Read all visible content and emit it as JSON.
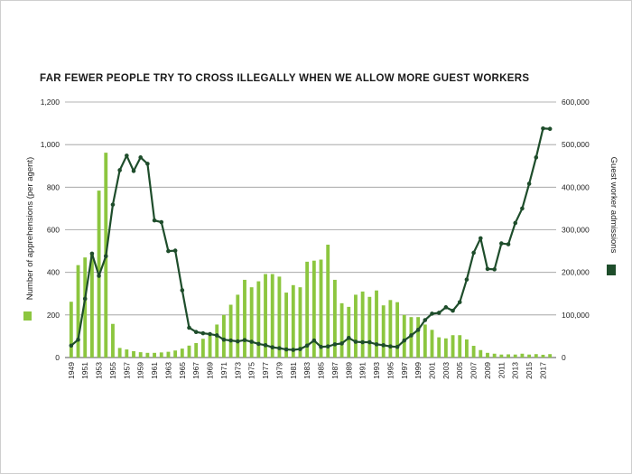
{
  "chart_data": {
    "type": "bar+line",
    "title": "FAR FEWER PEOPLE TRY TO CROSS ILLEGALLY WHEN WE ALLOW MORE GUEST WORKERS",
    "ylabel_left": "Number of apprehensions (per agent)",
    "ylabel_right": "Guest worker admissions",
    "ylim_left": [
      0,
      1200
    ],
    "ylim_right": [
      0,
      600000
    ],
    "left_ticks": [
      "0",
      "200",
      "400",
      "600",
      "800",
      "1,000",
      "1,200"
    ],
    "right_ticks": [
      "0",
      "100,000",
      "200,000",
      "300,000",
      "400,000",
      "500,000",
      "600,000"
    ],
    "grid": true,
    "x_start": 1949,
    "x_end": 2018,
    "x_tick_labels": [
      "1949",
      "1951",
      "1953",
      "1955",
      "1957",
      "1959",
      "1961",
      "1963",
      "1965",
      "1967",
      "1969",
      "1971",
      "1973",
      "1975",
      "1977",
      "1979",
      "1981",
      "1983",
      "1985",
      "1987",
      "1989",
      "1991",
      "1993",
      "1995",
      "1997",
      "1999",
      "2001",
      "2003",
      "2005",
      "2007",
      "2009",
      "2011",
      "2013",
      "2015",
      "2017"
    ],
    "series": [
      {
        "name": "Apprehensions per agent",
        "kind": "bar",
        "axis": "left",
        "color": "#8cc63f",
        "values": [
          262,
          434,
          470,
          487,
          784,
          962,
          158,
          45,
          38,
          30,
          25,
          22,
          22,
          24,
          27,
          33,
          42,
          56,
          68,
          88,
          115,
          155,
          200,
          248,
          295,
          365,
          330,
          358,
          392,
          392,
          380,
          305,
          340,
          330,
          450,
          455,
          460,
          530,
          365,
          255,
          238,
          295,
          310,
          285,
          315,
          245,
          270,
          260,
          200,
          190,
          190,
          155,
          130,
          95,
          90,
          105,
          105,
          85,
          55,
          35,
          22,
          18,
          14,
          15,
          14,
          18,
          14,
          16,
          13,
          16
        ]
      },
      {
        "name": "Guest worker admissions",
        "kind": "line",
        "axis": "right",
        "color": "#1e4d2b",
        "values": [
          28000,
          42000,
          138000,
          244000,
          192000,
          238000,
          359000,
          440000,
          474000,
          438000,
          470000,
          455000,
          322000,
          318000,
          250000,
          251000,
          158000,
          70000,
          60000,
          57000,
          55000,
          52000,
          42000,
          40000,
          38000,
          41000,
          37000,
          32000,
          29000,
          24000,
          22000,
          19000,
          18000,
          20000,
          28000,
          40000,
          25000,
          26000,
          31000,
          33000,
          46000,
          37000,
          36000,
          36000,
          31000,
          29000,
          26000,
          25000,
          40000,
          52000,
          65000,
          88000,
          103000,
          105000,
          118000,
          110000,
          130000,
          183000,
          246000,
          280000,
          208000,
          207000,
          268000,
          266000,
          316000,
          350000,
          408000,
          470000,
          538000,
          537000
        ]
      }
    ],
    "legend": [
      "Number of apprehensions (per agent)",
      "Guest worker admissions"
    ]
  }
}
